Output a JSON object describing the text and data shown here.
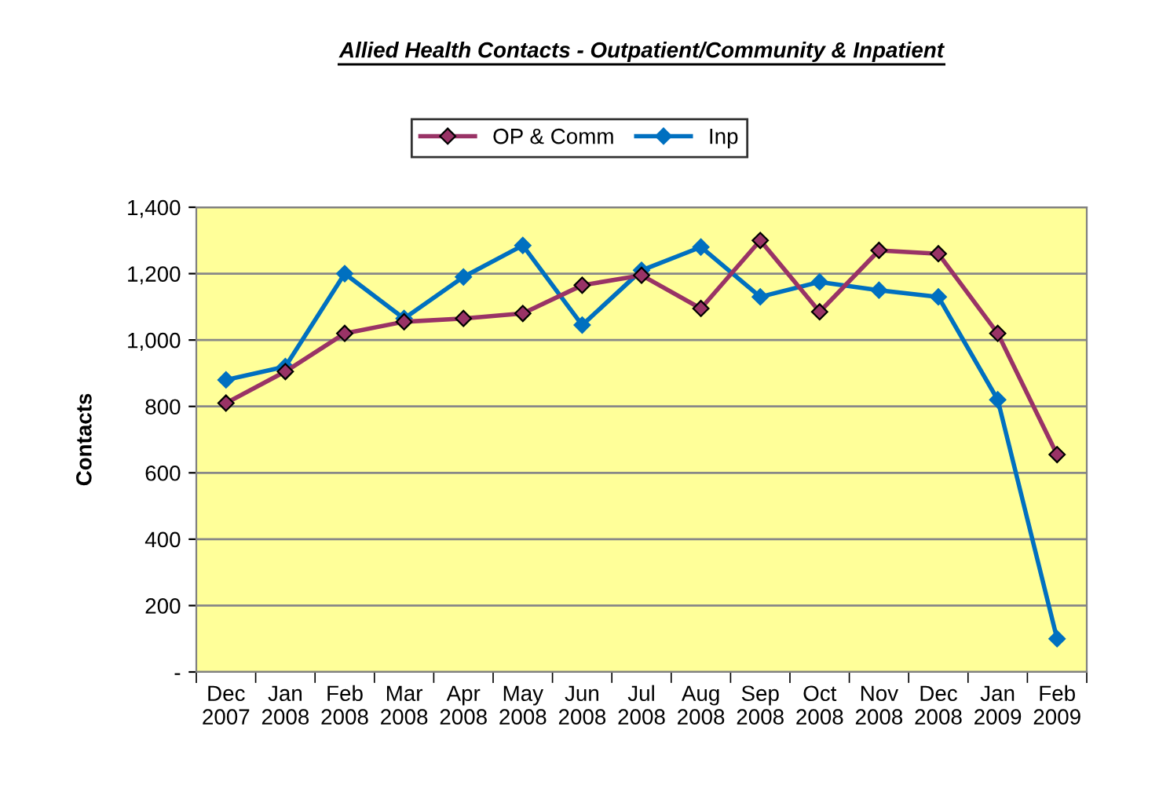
{
  "chart_data": {
    "type": "line",
    "title": "Allied Health Contacts - Outpatient/Community & Inpatient",
    "ylabel": "Contacts",
    "categories": [
      "Dec\n2007",
      "Jan\n2008",
      "Feb\n2008",
      "Mar\n2008",
      "Apr\n2008",
      "May\n2008",
      "Jun\n2008",
      "Jul\n2008",
      "Aug\n2008",
      "Sep\n2008",
      "Oct\n2008",
      "Nov\n2008",
      "Dec\n2008",
      "Jan\n2009",
      "Feb\n2009"
    ],
    "series": [
      {
        "name": "OP & Comm",
        "color": "#993366",
        "values": [
          810,
          905,
          1020,
          1055,
          1065,
          1080,
          1165,
          1195,
          1095,
          1300,
          1085,
          1270,
          1260,
          1020,
          655
        ]
      },
      {
        "name": "Inp",
        "color": "#0070c0",
        "values": [
          880,
          920,
          1200,
          1065,
          1190,
          1285,
          1045,
          1210,
          1280,
          1130,
          1175,
          1150,
          1130,
          820,
          100
        ]
      }
    ],
    "ylim": [
      0,
      1400
    ],
    "yticks": [
      {
        "value": 0,
        "label": "-"
      },
      {
        "value": 200,
        "label": "200"
      },
      {
        "value": 400,
        "label": "400"
      },
      {
        "value": 600,
        "label": "600"
      },
      {
        "value": 800,
        "label": "800"
      },
      {
        "value": 1000,
        "label": "1,000"
      },
      {
        "value": 1200,
        "label": "1,200"
      },
      {
        "value": 1400,
        "label": "1,400"
      }
    ],
    "grid": "y",
    "legend": "top",
    "marker": "diamond",
    "line_style": "solid"
  }
}
